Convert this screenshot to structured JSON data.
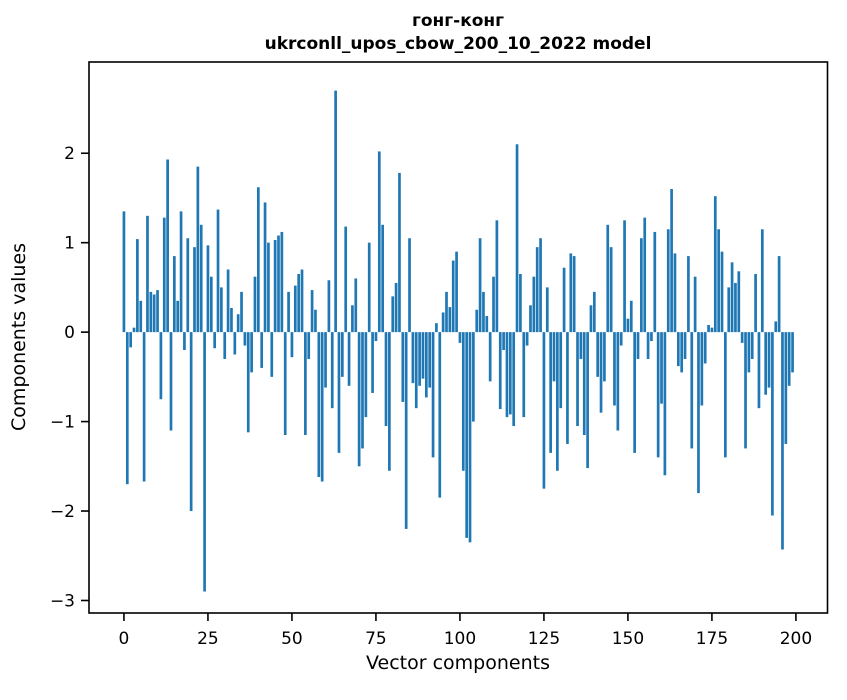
{
  "title": {
    "line1": "гонг-конг",
    "line2": "ukrconll_upos_cbow_200_10_2022 model"
  },
  "axes": {
    "xlabel": "Vector components",
    "ylabel": "Components values",
    "xticks": [
      0,
      25,
      50,
      75,
      100,
      125,
      150,
      175,
      200
    ],
    "yticks": [
      -3,
      -2,
      -1,
      0,
      1,
      2
    ]
  },
  "colors": {
    "bar": "#1f77b4",
    "text": "#000000",
    "background": "#ffffff",
    "spine": "#000000"
  },
  "chart_data": {
    "type": "bar",
    "title": "гонг-конг\nukrconll_upos_cbow_200_10_2022 model",
    "xlabel": "Vector components",
    "ylabel": "Components values",
    "x_start": 0,
    "x_step": 1,
    "n_bars": 200,
    "bar_width": 0.8,
    "bar_color": "#1f77b4",
    "grid": false,
    "legend": null,
    "xlim": [
      -10.4,
      209.4
    ],
    "ylim": [
      -3.14,
      3.02
    ],
    "values": [
      1.35,
      -1.7,
      -0.17,
      0.05,
      1.04,
      0.35,
      -1.67,
      1.3,
      0.45,
      0.42,
      0.47,
      -0.75,
      1.28,
      1.93,
      -1.1,
      0.85,
      0.35,
      1.35,
      -0.2,
      1.05,
      -2.0,
      0.95,
      1.85,
      1.2,
      -2.9,
      0.97,
      0.62,
      -0.18,
      1.37,
      0.5,
      -0.3,
      0.7,
      0.27,
      -0.25,
      0.2,
      0.45,
      -0.15,
      -1.12,
      -0.45,
      0.62,
      1.62,
      -0.4,
      1.45,
      1.0,
      -0.5,
      1.03,
      1.08,
      1.12,
      -1.15,
      0.45,
      -0.28,
      0.52,
      0.65,
      0.7,
      -1.15,
      -0.3,
      0.47,
      0.25,
      -1.62,
      -1.67,
      -0.62,
      0.58,
      -0.85,
      2.7,
      -1.35,
      -0.5,
      1.18,
      -0.6,
      0.3,
      0.6,
      -1.5,
      -1.3,
      -0.95,
      1.0,
      -0.68,
      -0.1,
      2.02,
      1.2,
      -1.05,
      -1.55,
      0.4,
      0.55,
      1.78,
      -0.78,
      -2.2,
      1.05,
      -0.57,
      -0.85,
      -0.6,
      -0.52,
      -0.73,
      -0.62,
      -1.4,
      0.1,
      -1.85,
      0.22,
      0.45,
      0.28,
      0.8,
      0.9,
      -0.12,
      -1.55,
      -2.3,
      -2.35,
      -1.0,
      0.25,
      1.05,
      0.45,
      0.18,
      -0.55,
      0.62,
      1.25,
      -0.86,
      -0.2,
      -0.95,
      -0.92,
      -1.05,
      2.1,
      0.65,
      -0.95,
      -0.15,
      0.3,
      0.62,
      0.95,
      1.05,
      -1.75,
      0.5,
      -1.35,
      -0.55,
      -1.55,
      -0.85,
      0.72,
      -1.25,
      0.88,
      0.85,
      -1.05,
      -0.3,
      -1.15,
      -1.52,
      0.3,
      0.45,
      -0.5,
      -0.9,
      -0.55,
      1.2,
      0.95,
      -0.82,
      -1.1,
      -0.15,
      1.25,
      0.15,
      0.35,
      -1.35,
      -0.3,
      1.05,
      1.28,
      -0.3,
      -0.1,
      1.12,
      -1.4,
      -0.8,
      -1.6,
      1.15,
      1.6,
      0.88,
      -0.38,
      -0.45,
      -0.3,
      0.85,
      -1.3,
      0.62,
      -1.8,
      -0.82,
      -0.35,
      0.08,
      0.05,
      1.52,
      1.15,
      0.9,
      -1.4,
      0.5,
      0.78,
      0.55,
      0.68,
      -0.12,
      -1.3,
      -0.45,
      -0.3,
      0.65,
      -0.85,
      1.15,
      -0.7,
      -0.62,
      -2.05,
      0.12,
      0.85,
      -2.43,
      -1.25,
      -0.6,
      -0.45
    ]
  }
}
